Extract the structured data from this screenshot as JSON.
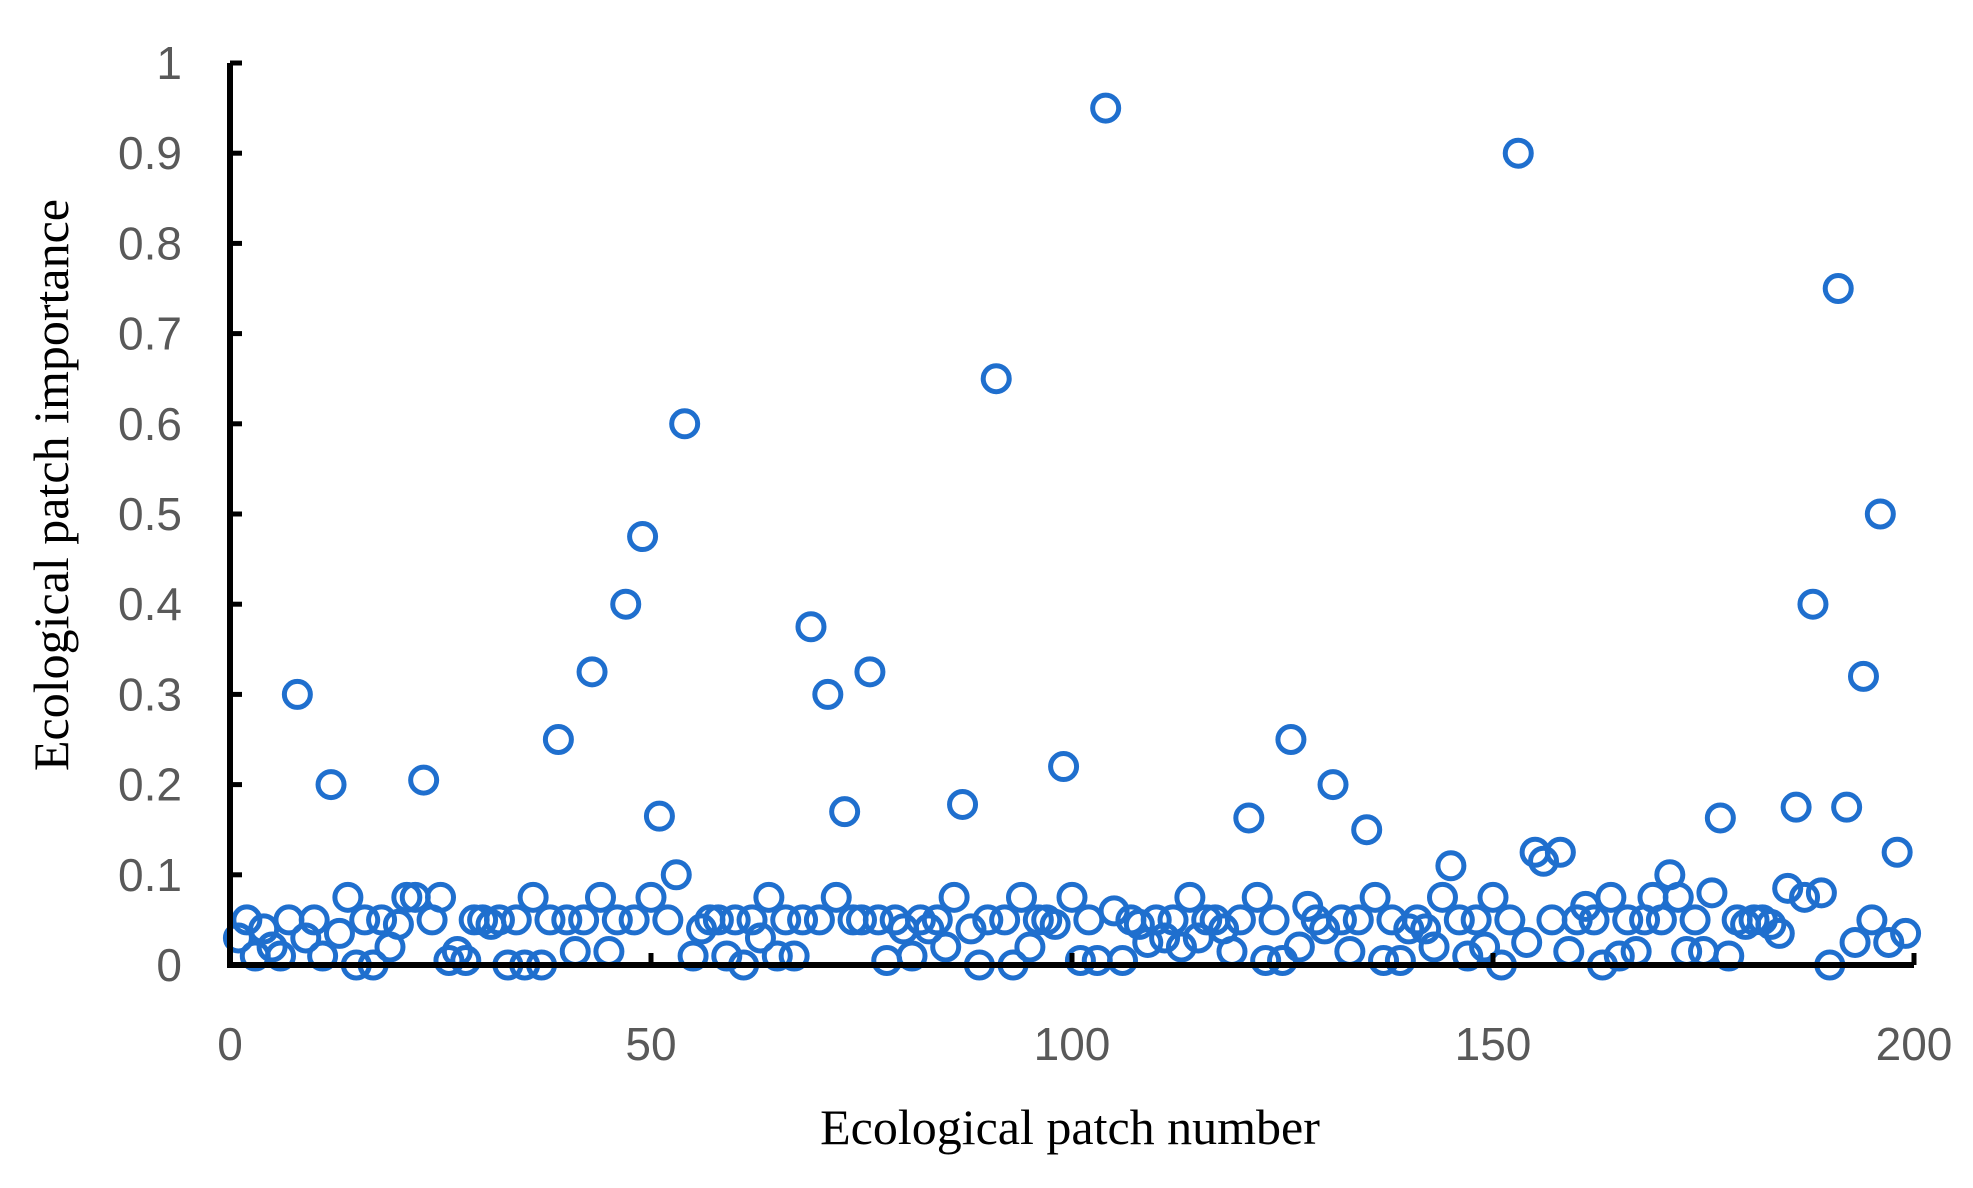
{
  "chart_data": {
    "type": "scatter",
    "title": "",
    "xlabel": "Ecological patch number",
    "ylabel": "Ecological patch importance",
    "xlim": [
      0,
      200
    ],
    "ylim": [
      0,
      1
    ],
    "x_ticks": [
      "0",
      "50",
      "100",
      "150",
      "200"
    ],
    "y_ticks": [
      "0",
      "0.1",
      "0.2",
      "0.3",
      "0.4",
      "0.5",
      "0.6",
      "0.7",
      "0.8",
      "0.9",
      "1"
    ],
    "grid": false,
    "legend": "none",
    "marker": "hollow-circle",
    "marker_color": "#1F6FCE",
    "series": [
      {
        "points": [
          [
            1,
            0.03
          ],
          [
            2,
            0.05
          ],
          [
            3,
            0.01
          ],
          [
            4,
            0.04
          ],
          [
            5,
            0.02
          ],
          [
            6,
            0.01
          ],
          [
            7,
            0.05
          ],
          [
            8,
            0.3
          ],
          [
            9,
            0.03
          ],
          [
            10,
            0.05
          ],
          [
            11,
            0.01
          ],
          [
            12,
            0.2
          ],
          [
            13,
            0.035
          ],
          [
            14,
            0.075
          ],
          [
            15,
            0
          ],
          [
            16,
            0.05
          ],
          [
            17,
            0
          ],
          [
            18,
            0.05
          ],
          [
            19,
            0.02
          ],
          [
            20,
            0.045
          ],
          [
            21,
            0.075
          ],
          [
            22,
            0.075
          ],
          [
            23,
            0.205
          ],
          [
            24,
            0.05
          ],
          [
            25,
            0.075
          ],
          [
            26,
            0.005
          ],
          [
            27,
            0.015
          ],
          [
            28,
            0.005
          ],
          [
            29,
            0.05
          ],
          [
            30,
            0.05
          ],
          [
            31,
            0.045
          ],
          [
            32,
            0.05
          ],
          [
            33,
            0
          ],
          [
            34,
            0.05
          ],
          [
            35,
            0
          ],
          [
            36,
            0.075
          ],
          [
            37,
            0
          ],
          [
            38,
            0.05
          ],
          [
            39,
            0.25
          ],
          [
            40,
            0.05
          ],
          [
            41,
            0.015
          ],
          [
            42,
            0.05
          ],
          [
            43,
            0.325
          ],
          [
            44,
            0.075
          ],
          [
            45,
            0.015
          ],
          [
            46,
            0.05
          ],
          [
            47,
            0.4
          ],
          [
            48,
            0.05
          ],
          [
            49,
            0.475
          ],
          [
            50,
            0.075
          ],
          [
            51,
            0.165
          ],
          [
            52,
            0.05
          ],
          [
            53,
            0.1
          ],
          [
            54,
            0.6
          ],
          [
            55,
            0.01
          ],
          [
            56,
            0.04
          ],
          [
            57,
            0.05
          ],
          [
            58,
            0.05
          ],
          [
            59,
            0.01
          ],
          [
            60,
            0.05
          ],
          [
            61,
            0
          ],
          [
            62,
            0.05
          ],
          [
            63,
            0.03
          ],
          [
            64,
            0.075
          ],
          [
            65,
            0.01
          ],
          [
            66,
            0.05
          ],
          [
            67,
            0.01
          ],
          [
            68,
            0.05
          ],
          [
            69,
            0.375
          ],
          [
            70,
            0.05
          ],
          [
            71,
            0.3
          ],
          [
            72,
            0.075
          ],
          [
            73,
            0.17
          ],
          [
            74,
            0.05
          ],
          [
            75,
            0.05
          ],
          [
            76,
            0.325
          ],
          [
            77,
            0.05
          ],
          [
            78,
            0.005
          ],
          [
            79,
            0.05
          ],
          [
            80,
            0.04
          ],
          [
            81,
            0.01
          ],
          [
            82,
            0.05
          ],
          [
            83,
            0.04
          ],
          [
            84,
            0.05
          ],
          [
            85,
            0.02
          ],
          [
            86,
            0.075
          ],
          [
            87,
            0.178
          ],
          [
            88,
            0.04
          ],
          [
            89,
            0
          ],
          [
            90,
            0.05
          ],
          [
            91,
            0.65
          ],
          [
            92,
            0.05
          ],
          [
            93,
            0
          ],
          [
            94,
            0.075
          ],
          [
            95,
            0.02
          ],
          [
            96,
            0.05
          ],
          [
            97,
            0.05
          ],
          [
            98,
            0.045
          ],
          [
            99,
            0.22
          ],
          [
            100,
            0.075
          ],
          [
            101,
            0.005
          ],
          [
            102,
            0.05
          ],
          [
            103,
            0.005
          ],
          [
            104,
            0.95
          ],
          [
            105,
            0.06
          ],
          [
            106,
            0.005
          ],
          [
            107,
            0.05
          ],
          [
            108,
            0.045
          ],
          [
            109,
            0.025
          ],
          [
            110,
            0.05
          ],
          [
            111,
            0.03
          ],
          [
            112,
            0.05
          ],
          [
            113,
            0.02
          ],
          [
            114,
            0.075
          ],
          [
            115,
            0.03
          ],
          [
            116,
            0.05
          ],
          [
            117,
            0.05
          ],
          [
            118,
            0.04
          ],
          [
            119,
            0.015
          ],
          [
            120,
            0.05
          ],
          [
            121,
            0.163
          ],
          [
            122,
            0.075
          ],
          [
            123,
            0.005
          ],
          [
            124,
            0.05
          ],
          [
            125,
            0.005
          ],
          [
            126,
            0.25
          ],
          [
            127,
            0.02
          ],
          [
            128,
            0.065
          ],
          [
            129,
            0.05
          ],
          [
            130,
            0.04
          ],
          [
            131,
            0.2
          ],
          [
            132,
            0.05
          ],
          [
            133,
            0.015
          ],
          [
            134,
            0.05
          ],
          [
            135,
            0.15
          ],
          [
            136,
            0.075
          ],
          [
            137,
            0.005
          ],
          [
            138,
            0.05
          ],
          [
            139,
            0.005
          ],
          [
            140,
            0.04
          ],
          [
            141,
            0.05
          ],
          [
            142,
            0.04
          ],
          [
            143,
            0.02
          ],
          [
            144,
            0.075
          ],
          [
            145,
            0.11
          ],
          [
            146,
            0.05
          ],
          [
            147,
            0.01
          ],
          [
            148,
            0.05
          ],
          [
            149,
            0.02
          ],
          [
            150,
            0.075
          ],
          [
            151,
            0
          ],
          [
            152,
            0.05
          ],
          [
            153,
            0.9
          ],
          [
            154,
            0.025
          ],
          [
            155,
            0.125
          ],
          [
            156,
            0.115
          ],
          [
            157,
            0.05
          ],
          [
            158,
            0.125
          ],
          [
            159,
            0.015
          ],
          [
            160,
            0.05
          ],
          [
            161,
            0.065
          ],
          [
            162,
            0.05
          ],
          [
            163,
            0
          ],
          [
            164,
            0.075
          ],
          [
            165,
            0.01
          ],
          [
            166,
            0.05
          ],
          [
            167,
            0.015
          ],
          [
            168,
            0.05
          ],
          [
            169,
            0.075
          ],
          [
            170,
            0.05
          ],
          [
            171,
            0.1
          ],
          [
            172,
            0.075
          ],
          [
            173,
            0.015
          ],
          [
            174,
            0.05
          ],
          [
            175,
            0.015
          ],
          [
            176,
            0.08
          ],
          [
            177,
            0.163
          ],
          [
            178,
            0.01
          ],
          [
            179,
            0.05
          ],
          [
            180,
            0.045
          ],
          [
            181,
            0.05
          ],
          [
            182,
            0.05
          ],
          [
            183,
            0.045
          ],
          [
            184,
            0.035
          ],
          [
            185,
            0.085
          ],
          [
            186,
            0.175
          ],
          [
            187,
            0.075
          ],
          [
            188,
            0.4
          ],
          [
            189,
            0.08
          ],
          [
            190,
            0
          ],
          [
            191,
            0.75
          ],
          [
            192,
            0.175
          ],
          [
            193,
            0.025
          ],
          [
            194,
            0.32
          ],
          [
            195,
            0.05
          ],
          [
            196,
            0.5
          ],
          [
            197,
            0.025
          ],
          [
            198,
            0.125
          ],
          [
            199,
            0.035
          ]
        ]
      }
    ]
  }
}
